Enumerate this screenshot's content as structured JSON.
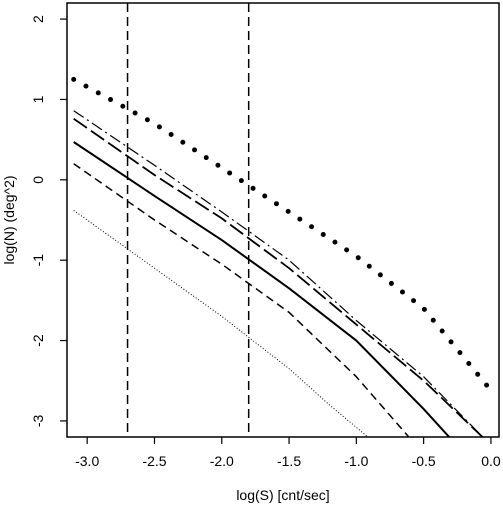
{
  "chart_data": {
    "type": "line",
    "title": "",
    "xlabel": "log(S) [cnt/sec]",
    "ylabel": "log(N) (deg^2)",
    "xlim": [
      -3.15,
      0.06
    ],
    "ylim": [
      -3.2,
      2.2
    ],
    "x_ticks": [
      -3.0,
      -2.5,
      -2.0,
      -1.5,
      -1.0,
      -0.5,
      0.0
    ],
    "x_tick_labels": [
      "-3.0",
      "-2.5",
      "-2.0",
      "-1.5",
      "-1.0",
      "-0.5",
      "0.0"
    ],
    "y_ticks": [
      -3,
      -2,
      -1,
      0,
      1,
      2
    ],
    "y_tick_labels": [
      "-3",
      "-2",
      "-1",
      "0",
      "1",
      "2"
    ],
    "y_tick_labels_rotated": true,
    "vertical_lines": [
      {
        "x": -2.7,
        "style": "dashed"
      },
      {
        "x": -1.8,
        "style": "dashed"
      }
    ],
    "series": [
      {
        "style": "dotted-heavy",
        "x": [
          -3.1,
          -2.5,
          -2.0,
          -1.5,
          -1.0,
          -0.5,
          0.0
        ],
        "y": [
          1.25,
          0.7,
          0.15,
          -0.4,
          -0.95,
          -1.6,
          -2.62
        ]
      },
      {
        "style": "dash-dot",
        "x": [
          -3.1,
          -2.5,
          -2.0,
          -1.5,
          -1.0,
          -0.5,
          -0.05
        ],
        "y": [
          0.86,
          0.18,
          -0.4,
          -1.0,
          -1.75,
          -2.45,
          -3.22
        ]
      },
      {
        "style": "long-dash",
        "x": [
          -3.1,
          -2.5,
          -2.0,
          -1.5,
          -1.0,
          -0.5,
          -0.05
        ],
        "y": [
          0.76,
          0.06,
          -0.48,
          -1.1,
          -1.8,
          -2.5,
          -3.22
        ]
      },
      {
        "style": "solid",
        "x": [
          -3.1,
          -2.5,
          -2.0,
          -1.5,
          -1.0,
          -0.5,
          -0.3
        ],
        "y": [
          0.47,
          -0.2,
          -0.75,
          -1.35,
          -2.0,
          -2.85,
          -3.22
        ]
      },
      {
        "style": "short-dash",
        "x": [
          -3.1,
          -2.5,
          -2.0,
          -1.5,
          -1.0,
          -0.6
        ],
        "y": [
          0.2,
          -0.5,
          -1.05,
          -1.65,
          -2.45,
          -3.22
        ]
      },
      {
        "style": "fine-dotted",
        "x": [
          -3.1,
          -2.5,
          -2.0,
          -1.5,
          -1.2,
          -0.9
        ],
        "y": [
          -0.38,
          -1.1,
          -1.7,
          -2.35,
          -2.8,
          -3.22
        ]
      }
    ],
    "grid": false,
    "legend": "none"
  }
}
